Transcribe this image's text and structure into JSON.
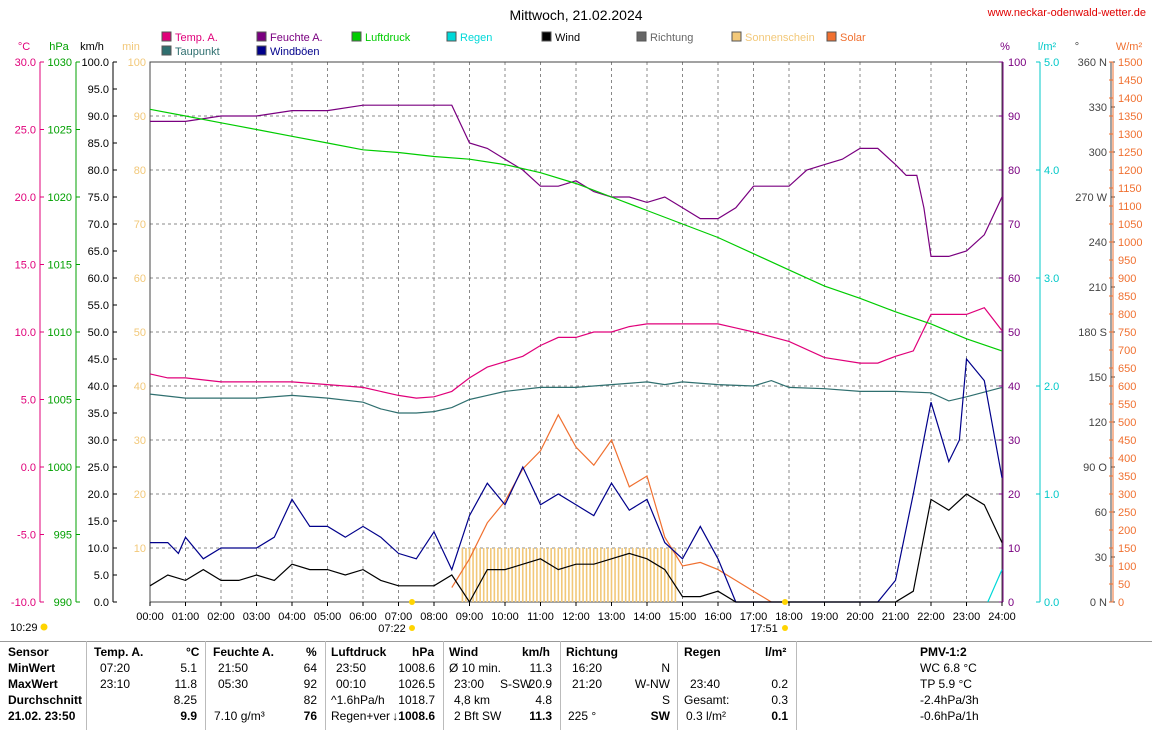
{
  "title": "Mittwoch, 21.02.2024",
  "site": "www.neckar-odenwald-wetter.de",
  "units": {
    "temp": "°C",
    "hpa": "hPa",
    "kmh": "km/h",
    "min": "min",
    "pct": "%",
    "lm2": "l/m²",
    "deg": "°",
    "wm2": "W/m²"
  },
  "legend": [
    {
      "name": "Temp. A.",
      "color": "#e0007a"
    },
    {
      "name": "Taupunkt",
      "color": "#2f6f6f"
    },
    {
      "name": "Feuchte A.",
      "color": "#7a0080"
    },
    {
      "name": "Windböen",
      "color": "#00008b"
    },
    {
      "name": "Luftdruck",
      "color": "#00cc00"
    },
    {
      "name": "Regen",
      "color": "#00d8d8"
    },
    {
      "name": "Wind",
      "color": "#000000"
    },
    {
      "name": "Richtung",
      "color": "#666666"
    },
    {
      "name": "Sonnenschein",
      "color": "#f2c879"
    },
    {
      "name": "Solar",
      "color": "#f07030"
    }
  ],
  "sun": {
    "rise": "07:22",
    "set": "17:51",
    "moon": "10:29"
  },
  "chart_data": {
    "type": "line",
    "x_labels": [
      "00:00",
      "01:00",
      "02:00",
      "03:00",
      "04:00",
      "05:00",
      "06:00",
      "07:00",
      "08:00",
      "09:00",
      "10:00",
      "11:00",
      "12:00",
      "13:00",
      "14:00",
      "15:00",
      "16:00",
      "17:00",
      "18:00",
      "19:00",
      "20:00",
      "21:00",
      "22:00",
      "23:00",
      "24:00"
    ],
    "axes": {
      "temp": {
        "ticks": [
          "30.0",
          "25.0",
          "20.0",
          "15.0",
          "10.0",
          "5.0",
          "0.0",
          "-5.0",
          "-10.0"
        ],
        "range": [
          -10,
          30
        ]
      },
      "pressure": {
        "ticks": [
          "1030",
          "1025",
          "1020",
          "1015",
          "1010",
          "1005",
          "1000",
          "995",
          "990"
        ],
        "range": [
          990,
          1030
        ]
      },
      "wind": {
        "ticks": [
          "100.0",
          "95.0",
          "90.0",
          "85.0",
          "80.0",
          "75.0",
          "70.0",
          "65.0",
          "60.0",
          "55.0",
          "50.0",
          "45.0",
          "40.0",
          "35.0",
          "30.0",
          "25.0",
          "20.0",
          "15.0",
          "10.0",
          "5.0",
          "0.0"
        ],
        "range": [
          0,
          100
        ]
      },
      "minutes": {
        "ticks": [
          "100",
          "90",
          "80",
          "70",
          "60",
          "50",
          "40",
          "30",
          "20",
          "10"
        ],
        "range": [
          0,
          100
        ]
      },
      "humidity": {
        "ticks": [
          "100",
          "90",
          "80",
          "70",
          "60",
          "50",
          "40",
          "30",
          "20",
          "10",
          "0"
        ],
        "range": [
          0,
          100
        ]
      },
      "rain": {
        "ticks": [
          "5.0",
          "4.0",
          "3.0",
          "2.0",
          "1.0",
          "0.0"
        ],
        "range": [
          0,
          5
        ]
      },
      "direction": {
        "ticks": [
          "360 N",
          "330",
          "300",
          "270 W",
          "240",
          "210",
          "180 S",
          "150",
          "120",
          "90 O",
          "60",
          "30",
          "0 N"
        ],
        "range": [
          0,
          360
        ]
      },
      "solar": {
        "ticks": [
          "1500",
          "1450",
          "1400",
          "1350",
          "1300",
          "1250",
          "1200",
          "1150",
          "1100",
          "1050",
          "1000",
          "950",
          "900",
          "850",
          "800",
          "750",
          "700",
          "650",
          "600",
          "550",
          "500",
          "450",
          "400",
          "350",
          "300",
          "250",
          "200",
          "150",
          "100",
          "50",
          "0"
        ],
        "range": [
          0,
          1500
        ]
      }
    },
    "series": [
      {
        "name": "Temp. A.",
        "axis": "temp",
        "color": "#e0007a",
        "x": [
          0,
          0.5,
          1,
          2,
          3,
          4,
          5,
          6,
          7,
          7.5,
          8,
          8.5,
          9,
          9.5,
          10,
          10.5,
          11,
          11.5,
          12,
          12.5,
          13,
          13.5,
          14,
          14.5,
          15,
          16,
          16.5,
          17,
          18,
          19,
          20,
          20.5,
          21,
          21.5,
          22,
          22.5,
          23,
          23.5,
          24
        ],
        "y": [
          6.9,
          6.6,
          6.6,
          6.3,
          6.3,
          6.3,
          6.1,
          5.9,
          5.3,
          5.1,
          5.2,
          5.6,
          6.6,
          7.4,
          7.8,
          8.2,
          9.0,
          9.6,
          9.6,
          10.0,
          10.0,
          10.4,
          10.6,
          10.6,
          10.6,
          10.6,
          10.3,
          10.0,
          9.3,
          8.1,
          7.7,
          7.7,
          8.2,
          8.6,
          11.3,
          11.3,
          11.3,
          11.8,
          10.1
        ]
      },
      {
        "name": "Taupunkt",
        "axis": "temp",
        "color": "#2f6f6f",
        "x": [
          0,
          1,
          2,
          3,
          4,
          5,
          6,
          6.5,
          7,
          7.5,
          8,
          8.5,
          9,
          9.5,
          10,
          11,
          12,
          13,
          14,
          14.5,
          15,
          16,
          17,
          17.5,
          18,
          19,
          20,
          21,
          22,
          22.5,
          23,
          24
        ],
        "y": [
          5.4,
          5.1,
          5.1,
          5.1,
          5.3,
          5.1,
          4.8,
          4.3,
          4.0,
          4.0,
          4.1,
          4.4,
          5.0,
          5.3,
          5.6,
          5.9,
          5.9,
          6.1,
          6.3,
          6.1,
          6.3,
          6.1,
          6.0,
          6.4,
          5.9,
          5.8,
          5.6,
          5.6,
          5.5,
          4.9,
          5.2,
          5.9
        ]
      },
      {
        "name": "Feuchte A.",
        "axis": "humidity",
        "color": "#7a0080",
        "x": [
          0,
          1,
          2,
          3,
          4,
          5,
          6,
          7,
          8,
          8.5,
          9,
          9.5,
          10,
          10.5,
          11,
          11.5,
          12,
          12.5,
          13,
          13.5,
          14,
          14.5,
          15,
          15.5,
          16,
          16.5,
          17,
          17.5,
          18,
          18.5,
          19,
          19.5,
          20,
          20.5,
          21,
          21.3,
          21.6,
          21.8,
          22,
          22.5,
          23,
          23.5,
          24
        ],
        "y": [
          89,
          89,
          90,
          90,
          91,
          91,
          92,
          92,
          92,
          92,
          85,
          84,
          82,
          80,
          77,
          77,
          78,
          76,
          75,
          75,
          74,
          75,
          73,
          71,
          71,
          73,
          77,
          77,
          77,
          80,
          81,
          82,
          84,
          84,
          81,
          79,
          79,
          73,
          64,
          64,
          65,
          68,
          75
        ]
      },
      {
        "name": "Luftdruck",
        "axis": "pressure",
        "color": "#00cc00",
        "x": [
          0,
          1,
          2,
          3,
          4,
          5,
          6,
          7,
          8,
          9,
          10,
          11,
          12,
          13,
          14,
          15,
          16,
          17,
          18,
          19,
          20,
          21,
          22,
          23,
          24
        ],
        "y": [
          1026.5,
          1026.0,
          1025.5,
          1025.0,
          1024.5,
          1024.0,
          1023.5,
          1023.3,
          1023.0,
          1022.8,
          1022.4,
          1021.8,
          1021.0,
          1020.0,
          1019.0,
          1018.0,
          1017.0,
          1015.8,
          1014.6,
          1013.4,
          1012.5,
          1011.5,
          1010.6,
          1009.5,
          1008.6
        ]
      },
      {
        "name": "Windböen",
        "axis": "wind",
        "color": "#00008b",
        "x": [
          0,
          0.5,
          0.8,
          1,
          1.5,
          2,
          2.5,
          3,
          3.5,
          4,
          4.5,
          5,
          5.5,
          6,
          6.5,
          7,
          7.5,
          8,
          8.5,
          9,
          9.5,
          10,
          10.5,
          11,
          11.5,
          12,
          12.5,
          13,
          13.5,
          14,
          14.5,
          15,
          15.5,
          16,
          16.5,
          17,
          17.5,
          18,
          18.5,
          19,
          19.5,
          20,
          20.5,
          21,
          21.5,
          22,
          22.5,
          22.8,
          23,
          23.5,
          24
        ],
        "y": [
          11,
          11,
          9,
          12,
          8,
          10,
          10,
          10,
          12,
          19,
          14,
          14,
          12,
          14,
          12,
          9,
          8,
          13,
          6,
          16,
          22,
          18,
          25,
          18,
          20,
          18,
          16,
          22,
          17,
          19,
          11,
          8,
          14,
          8,
          0,
          0,
          0,
          0,
          0,
          0,
          0,
          0,
          0,
          4,
          20,
          37,
          26,
          30,
          45,
          41,
          23
        ]
      },
      {
        "name": "Wind",
        "axis": "wind",
        "color": "#000000",
        "x": [
          0,
          0.5,
          1,
          1.5,
          2,
          2.5,
          3,
          3.5,
          4,
          4.5,
          5,
          5.5,
          6,
          6.5,
          7,
          7.5,
          8,
          8.5,
          9,
          9.5,
          10,
          10.5,
          11,
          11.5,
          12,
          12.5,
          13,
          13.5,
          14,
          14.5,
          15,
          15.5,
          16,
          16.5,
          17,
          17.5,
          18,
          18.5,
          19,
          19.5,
          20,
          20.5,
          21,
          21.5,
          22,
          22.5,
          23,
          23.5,
          24
        ],
        "y": [
          3,
          5,
          4,
          6,
          4,
          4,
          5,
          4,
          7,
          6,
          6,
          5,
          6,
          4,
          3,
          3,
          3,
          5,
          0,
          6,
          6,
          7,
          8,
          6,
          7,
          7,
          8,
          9,
          8,
          6,
          1,
          1,
          2,
          0,
          0,
          0,
          0,
          0,
          0,
          0,
          0,
          0,
          0,
          2,
          19,
          17,
          20,
          18,
          11
        ]
      },
      {
        "name": "Solar",
        "axis": "solar",
        "color": "#f07030",
        "x": [
          8.5,
          9,
          9.5,
          10,
          10.5,
          11,
          11.5,
          12,
          12.5,
          13,
          13.5,
          14,
          14.5,
          15,
          15.5,
          16,
          16.5,
          17,
          17.5
        ],
        "y": [
          40,
          120,
          220,
          280,
          370,
          420,
          520,
          430,
          380,
          450,
          320,
          350,
          180,
          100,
          110,
          90,
          60,
          30,
          0
        ]
      },
      {
        "name": "Sonnenschein",
        "axis": "minutes",
        "color": "#f2c879",
        "x": [
          8.8,
          9.5,
          10,
          11,
          12,
          13,
          14,
          14.8
        ],
        "y": [
          10,
          10,
          10,
          10,
          10,
          10,
          10,
          10
        ]
      }
    ]
  },
  "table": {
    "headers": {
      "sensor": "Sensor",
      "temp": "Temp. A.",
      "temp_u": "°C",
      "hum": "Feuchte A.",
      "hum_u": "%",
      "press": "Luftdruck",
      "press_u": "hPa",
      "wind": "Wind",
      "wind_u": "km/h",
      "dir": "Richtung",
      "rain": "Regen",
      "rain_u": "l/m²",
      "pmv": "PMV-1:2"
    },
    "rows": {
      "min": "MinWert",
      "max": "MaxWert",
      "avg": "Durchschnitt",
      "date": "21.02. 23:50"
    },
    "temp": {
      "min_t": "07:20",
      "min_v": "5.1",
      "max_t": "23:10",
      "max_v": "11.8",
      "avg_v": "8.25",
      "cur_v": "9.9"
    },
    "hum": {
      "min_t": "21:50",
      "min_v": "64",
      "max_t": "05:30",
      "max_v": "92",
      "avg_v": "82",
      "cur_l": "7.10 g/m³",
      "cur_v": "76"
    },
    "press": {
      "min_t": "23:50",
      "min_v": "1008.6",
      "max_t": "00:10",
      "max_v": "1026.5",
      "avg_l": "^1.6hPa/h",
      "avg_v": "1018.7",
      "cur_l": "Regen+ver",
      "cur_v": "↓1008.6"
    },
    "wind": {
      "r1_l": "Ø 10 min.",
      "r1_v": "11.3",
      "r2_l": "23:00",
      "r2_d": "S-SW",
      "r2_v": "20.9",
      "r3_l": "4,8 km",
      "r3_v": "4.8",
      "r4_l": "2 Bft SW",
      "r4_v": "11.3"
    },
    "dir": {
      "r1_t": "16:20",
      "r1_v": "N",
      "r2_t": "21:20",
      "r2_v": "W-NW",
      "r3_v": "S",
      "r4_l": "225 °",
      "r4_v": "SW"
    },
    "rain": {
      "r2_t": "23:40",
      "r2_v": "0.2",
      "r3_l": "Gesamt:",
      "r3_v": "0.3",
      "r4_l": "0.3 l/m²",
      "r4_v": "0.1"
    },
    "pmv": {
      "r1": "WC 6.8 °C",
      "r2": "TP 5.9 °C",
      "r3": "-2.4hPa/3h",
      "r4": "-0.6hPa/1h"
    }
  }
}
